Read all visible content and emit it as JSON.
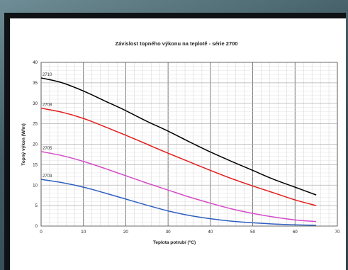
{
  "chart_data": {
    "type": "line",
    "title": "Závislost topného výkonu na teplotě - série 2700",
    "xlabel": "Teplota potrubí (°C)",
    "ylabel": "Topný výkon (W/m)",
    "xlim": [
      0,
      70
    ],
    "ylim": [
      0,
      40
    ],
    "xticks": [
      0,
      10,
      20,
      30,
      40,
      50,
      60,
      70
    ],
    "yticks": [
      0,
      5,
      10,
      15,
      20,
      25,
      30,
      35,
      40
    ],
    "grid": true,
    "x": [
      0,
      5,
      10,
      15,
      20,
      25,
      30,
      35,
      40,
      45,
      50,
      55,
      60,
      65
    ],
    "series": [
      {
        "name": "2710",
        "color": "#000000",
        "values": [
          36.2,
          35.0,
          33.0,
          30.6,
          28.2,
          25.6,
          23.2,
          20.6,
          18.1,
          15.8,
          13.6,
          11.4,
          9.5,
          7.6
        ]
      },
      {
        "name": "2708",
        "color": "#e31b1b",
        "values": [
          28.8,
          27.8,
          26.3,
          24.3,
          22.2,
          20.0,
          17.8,
          15.7,
          13.6,
          11.6,
          9.8,
          8.1,
          6.4,
          5.0
        ]
      },
      {
        "name": "2705",
        "color": "#d54bc8",
        "values": [
          18.2,
          17.2,
          15.8,
          14.1,
          12.3,
          10.5,
          8.8,
          7.1,
          5.6,
          4.2,
          3.1,
          2.2,
          1.5,
          1.1
        ]
      },
      {
        "name": "2703",
        "color": "#2f5fc0",
        "values": [
          11.4,
          10.6,
          9.5,
          8.1,
          6.6,
          5.1,
          3.7,
          2.6,
          1.8,
          1.2,
          0.8,
          0.5,
          0.3,
          0.2
        ]
      }
    ]
  }
}
